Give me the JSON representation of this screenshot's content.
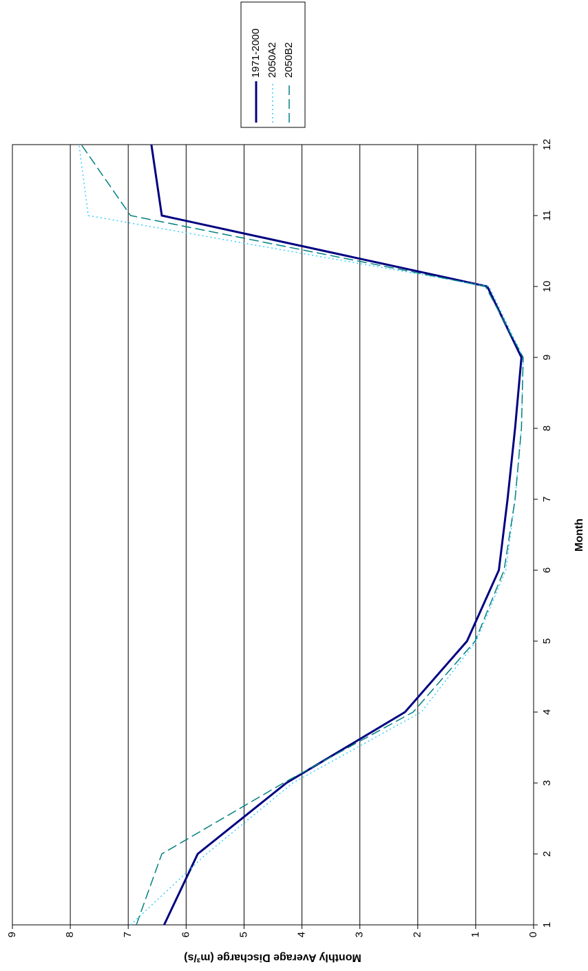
{
  "chart_data": {
    "type": "line",
    "x_label": "Month",
    "y_label": "Monthly Average Discharge (m³/s)",
    "x": [
      1,
      2,
      3,
      4,
      5,
      6,
      7,
      8,
      9,
      10,
      11,
      12
    ],
    "xlim": [
      1,
      12
    ],
    "xticks": [
      1,
      2,
      3,
      4,
      5,
      6,
      7,
      8,
      9,
      10,
      11,
      12
    ],
    "ylim": [
      0,
      9
    ],
    "yticks": [
      0,
      1,
      2,
      3,
      4,
      5,
      6,
      7,
      8,
      9
    ],
    "grid": true,
    "legend": "right",
    "series": [
      {
        "name": "1971-2000",
        "color": "#000080",
        "values": [
          6.38,
          5.8,
          4.27,
          2.22,
          1.15,
          0.6,
          0.45,
          0.32,
          0.21,
          0.8,
          6.42,
          6.6
        ]
      },
      {
        "name": "2050A2",
        "color": "#33ccff",
        "values": [
          6.96,
          5.65,
          4.16,
          1.94,
          0.99,
          0.48,
          0.32,
          0.21,
          0.18,
          0.77,
          7.69,
          7.85
        ]
      },
      {
        "name": "2050B2",
        "color": "#008080",
        "values": [
          6.86,
          6.42,
          4.32,
          2.08,
          1.01,
          0.51,
          0.32,
          0.21,
          0.18,
          0.83,
          6.96,
          7.81
        ]
      }
    ]
  }
}
